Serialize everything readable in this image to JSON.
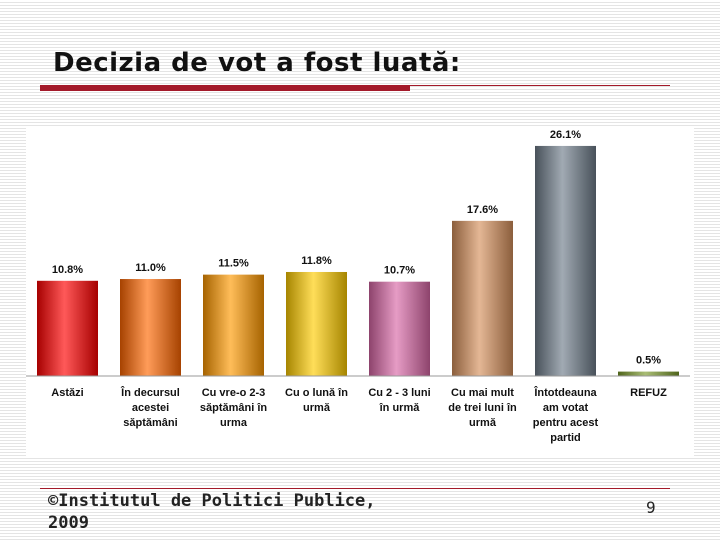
{
  "slide": {
    "title": "Decizia de vot a fost luată:",
    "credit": "©Institutul de Politici Publice, 2009",
    "page_number": "9"
  },
  "colors": {
    "title_bar": "#a31a2a",
    "bars": [
      "#ff0000",
      "#ff6600",
      "#ff9900",
      "#ffcc00",
      "#d967a6",
      "#d6905c",
      "#6e7c8a",
      "#7a9a2a"
    ]
  },
  "chart_data": {
    "type": "bar",
    "title": "",
    "xlabel": "",
    "ylabel": "",
    "ylim": [
      0,
      27
    ],
    "grid": false,
    "categories": [
      [
        "Astăzi"
      ],
      [
        "În decursul",
        "acestei",
        "săptămâni"
      ],
      [
        "Cu vre-o 2-3",
        "săptămâni în",
        "urma"
      ],
      [
        "Cu o lună în",
        "urmă"
      ],
      [
        "Cu 2 - 3 luni",
        "în urmă"
      ],
      [
        "Cu mai mult",
        "de trei luni în",
        "urmă"
      ],
      [
        "Întotdeauna",
        "am votat",
        "pentru acest",
        "partid"
      ],
      [
        "REFUZ"
      ]
    ],
    "values": [
      10.8,
      11.0,
      11.5,
      11.8,
      10.7,
      17.6,
      26.1,
      0.5
    ],
    "value_labels": [
      "10.8%",
      "11.0%",
      "11.5%",
      "11.8%",
      "10.7%",
      "17.6%",
      "26.1%",
      "0.5%"
    ]
  }
}
